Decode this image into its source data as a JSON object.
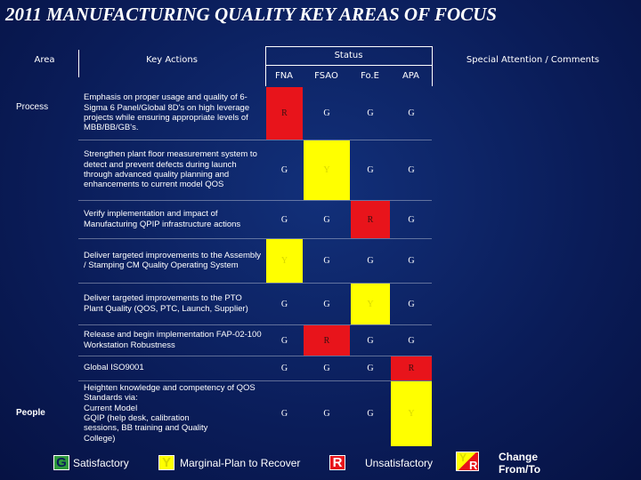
{
  "header": {
    "title": "2011 MANUFACTURING QUALITY KEY AREAS OF FOCUS"
  },
  "table": {
    "headers": {
      "area": "Area",
      "key_actions": "Key Actions",
      "status": "Status",
      "status_columns": [
        "FNA",
        "FSAO",
        "Fo.E",
        "APA"
      ],
      "comments": "Special Attention / Comments"
    },
    "rows": [
      {
        "area": "Process",
        "action": "Emphasis on proper usage and quality of 6-Sigma 6 Panel/Global 8D's on high leverage projects while ensuring appropriate levels of MBB/BB/GB's.",
        "status": [
          "R",
          "G",
          "G",
          "G"
        ]
      },
      {
        "action": "Strengthen plant floor measurement system to detect and prevent defects during launch through advanced quality planning and enhancements to current model QOS",
        "status": [
          "G",
          "Y",
          "G",
          "G"
        ]
      },
      {
        "action": "Verify implementation and impact of Manufacturing QPIP infrastructure actions",
        "status": [
          "G",
          "G",
          "R",
          "G"
        ]
      },
      {
        "action": "Deliver targeted improvements to the Assembly / Stamping CM Quality Operating System",
        "status": [
          "Y",
          "G",
          "G",
          "G"
        ]
      },
      {
        "action": "Deliver targeted improvements to the PTO Plant Quality (QOS, PTC, Launch, Supplier)",
        "status": [
          "G",
          "G",
          "Y",
          "G"
        ]
      },
      {
        "action": "Release and begin implementation FAP-02-100 Workstation Robustness",
        "status": [
          "G",
          "R",
          "G",
          "G"
        ]
      },
      {
        "action": "Global ISO9001",
        "status": [
          "G",
          "G",
          "G",
          "R"
        ]
      },
      {
        "area": "People",
        "action": "Heighten knowledge and competency of QOS Standards via:\n    Current Model\n    GQIP (help desk, calibration\n    sessions, BB training and Quality\n    College)",
        "status": [
          "G",
          "G",
          "G",
          "Y"
        ]
      }
    ]
  },
  "legend": {
    "items": [
      {
        "code": "G",
        "label": "Satisfactory",
        "color": "#2f9a3c",
        "cell_fill": "transparent",
        "cell_text": "#ffffff"
      },
      {
        "code": "Y",
        "label": "Marginal-Plan to Recover",
        "color": "#ffff00",
        "cell_fill": "#ffff00",
        "cell_text": "#d8d800"
      },
      {
        "code": "R",
        "label": "Unsatisfactory",
        "color": "#e8141b",
        "cell_fill": "#e8141b",
        "cell_text": "#3a1010"
      }
    ],
    "change": {
      "from": "Y",
      "to": "R",
      "label": "Change\nFrom/To"
    }
  }
}
